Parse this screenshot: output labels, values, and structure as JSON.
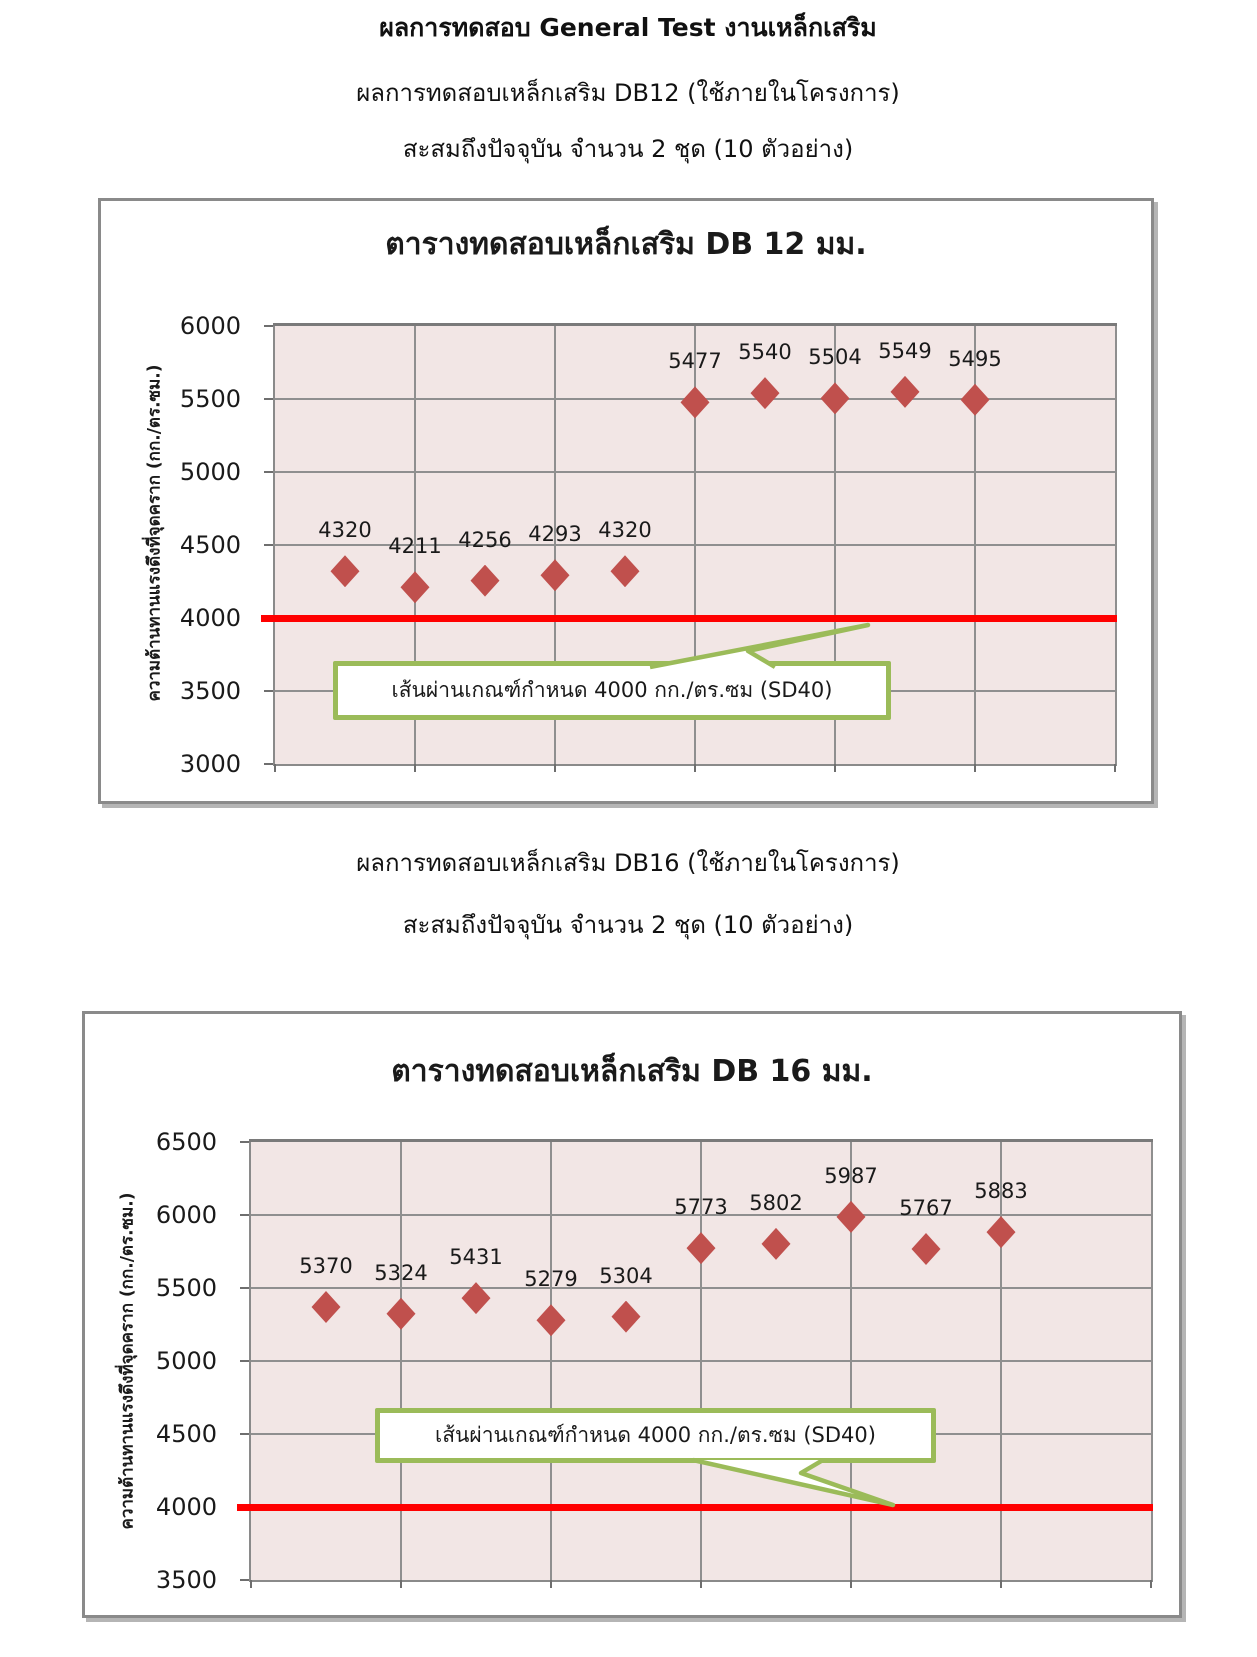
{
  "page": {
    "header": {
      "line1": "ผลการทดสอบ General Test งานเหล็กเสริม",
      "line2": "ผลการทดสอบเหล็กเสริม DB12 (ใช้ภายในโครงการ)",
      "line3": "สะสมถึงปัจจุบัน จำนวน 2 ชุด (10 ตัวอย่าง)"
    },
    "section2": {
      "line1": "ผลการทดสอบเหล็กเสริม DB16 (ใช้ภายในโครงการ)",
      "line2": "สะสมถึงปัจจุบัน จำนวน 2 ชุด (10 ตัวอย่าง)"
    }
  },
  "chart_data": [
    {
      "type": "scatter",
      "title": "ตารางทดสอบเหล็กเสริม DB 12 มม.",
      "ylabel": "ความต้านทานแรงดึงที่จุดคราก  (กก./ตร.ซม.)",
      "xlabel": "",
      "x": [
        1,
        2,
        3,
        4,
        5,
        6,
        7,
        8,
        9,
        10
      ],
      "values": [
        4320,
        4211,
        4256,
        4293,
        4320,
        5477,
        5540,
        5504,
        5549,
        5495
      ],
      "point_labels": [
        "4320",
        "4211",
        "4256",
        "4293",
        "4320",
        "5477",
        "5540",
        "5504",
        "5549",
        "5495"
      ],
      "xlim": [
        0,
        12
      ],
      "ylim": [
        3000,
        6000
      ],
      "yticks": [
        6000,
        5500,
        5000,
        4500,
        4000,
        3500,
        3000
      ],
      "x_gridline_step": 2,
      "grid": true,
      "legend": "none",
      "marker": {
        "shape": "diamond",
        "color": "#C0504D"
      },
      "threshold_line": {
        "value": 4000,
        "color": "#FF0000"
      },
      "callout": {
        "text": "เส้นผ่านเกณฑ์กำหนด 4000 กก./ตร.ซม (SD40)",
        "border_color": "#9BBB59"
      },
      "plot_bg": "#F2E6E5",
      "grid_color": "#8F8F8F"
    },
    {
      "type": "scatter",
      "title": "ตารางทดสอบเหล็กเสริม DB 16 มม.",
      "ylabel": "ความต้านทานแรงดึงที่จุดคราก  (กก./ตร.ซม.)",
      "xlabel": "",
      "x": [
        1,
        2,
        3,
        4,
        5,
        6,
        7,
        8,
        9,
        10
      ],
      "values": [
        5370,
        5324,
        5431,
        5279,
        5304,
        5773,
        5802,
        5987,
        5767,
        5883
      ],
      "point_labels": [
        "5370",
        "5324",
        "5431",
        "5279",
        "5304",
        "5773",
        "5802",
        "5987",
        "5767",
        "5883"
      ],
      "xlim": [
        0,
        12
      ],
      "ylim": [
        3500,
        6500
      ],
      "yticks": [
        6500,
        6000,
        5500,
        5000,
        4500,
        4000,
        3500
      ],
      "x_gridline_step": 2,
      "grid": true,
      "legend": "none",
      "marker": {
        "shape": "diamond",
        "color": "#C0504D"
      },
      "threshold_line": {
        "value": 4000,
        "color": "#FF0000"
      },
      "callout": {
        "text": "เส้นผ่านเกณฑ์กำหนด 4000 กก./ตร.ซม (SD40)",
        "border_color": "#9BBB59"
      },
      "plot_bg": "#F2E6E5",
      "grid_color": "#8F8F8F"
    }
  ]
}
